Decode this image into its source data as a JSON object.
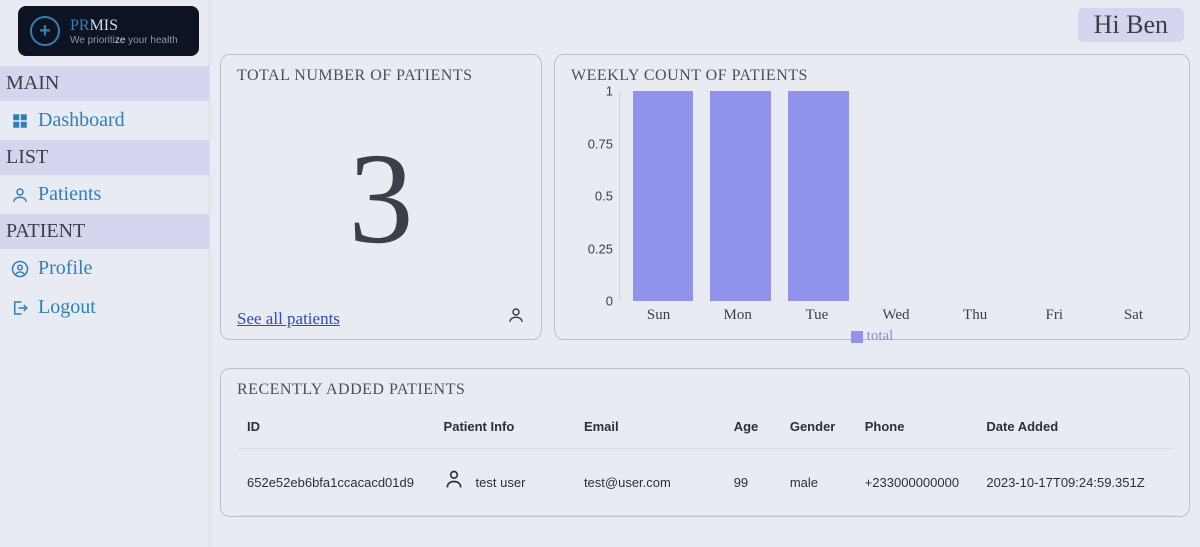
{
  "brand": {
    "title_pr": "PR",
    "title_mis": "MIS",
    "subtitle_prefix": "We prioriti",
    "subtitle_mid": "ze ",
    "subtitle_suffix": "your health"
  },
  "greeting": "Hi Ben",
  "nav": {
    "sections": [
      {
        "label": "MAIN",
        "items": [
          {
            "key": "dashboard",
            "label": "Dashboard",
            "icon": "grid"
          }
        ]
      },
      {
        "label": "LIST",
        "items": [
          {
            "key": "patients",
            "label": "Patients",
            "icon": "person"
          }
        ]
      },
      {
        "label": "PATIENT",
        "items": [
          {
            "key": "profile",
            "label": "Profile",
            "icon": "account"
          },
          {
            "key": "logout",
            "label": "Logout",
            "icon": "logout"
          }
        ]
      }
    ]
  },
  "cards": {
    "total": {
      "title": "TOTAL NUMBER OF PATIENTS",
      "value": "3",
      "link_label": "See all patients"
    },
    "chart": {
      "title": "WEEKLY COUNT OF PATIENTS",
      "type": "bar",
      "categories": [
        "Sun",
        "Mon",
        "Tue",
        "Wed",
        "Thu",
        "Fri",
        "Sat"
      ],
      "values": [
        1,
        1,
        1,
        0,
        0,
        0,
        0
      ],
      "ylim": [
        0,
        1
      ],
      "yticks": [
        0,
        0.25,
        0.5,
        0.75,
        1
      ],
      "bar_color": "#9192ec",
      "bar_width_pct": 78,
      "grid_color": "#cfd4de",
      "background_color": "#e8ecf2",
      "axis_font": "Arial",
      "axis_fontsize": 13,
      "xlabel_fontsize": 15,
      "legend_label": "total",
      "legend_color": "#8a8be0"
    }
  },
  "table": {
    "title": "RECENTLY ADDED PATIENTS",
    "columns": [
      "ID",
      "Patient Info",
      "Email",
      "Age",
      "Gender",
      "Phone",
      "Date Added"
    ],
    "column_widths_pct": [
      21,
      15,
      16,
      6,
      8,
      13,
      21
    ],
    "rows": [
      {
        "id": "652e52eb6bfa1ccacacd01d9",
        "patient_info": "test user",
        "email": "test@user.com",
        "age": "99",
        "gender": "male",
        "phone": "+233000000000",
        "date_added": "2023-10-17T09:24:59.351Z"
      }
    ]
  },
  "colors": {
    "page_bg": "#e8ecf2",
    "accent": "#2f7fbf",
    "link": "#2f49bf",
    "section_bg": "#d3d6ee",
    "text": "#3a3f49",
    "border": "#b9c0cd"
  }
}
